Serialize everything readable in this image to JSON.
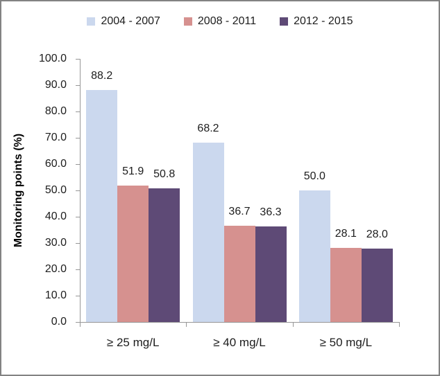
{
  "chart_data": {
    "type": "bar",
    "title": "",
    "ylabel": "Monitoring points (%)",
    "xlabel": "",
    "categories": [
      "≥ 25 mg/L",
      "≥ 40 mg/L",
      "≥ 50 mg/L"
    ],
    "series": [
      {
        "name": "2004 - 2007",
        "color": "#CBD8EE",
        "values": [
          88.2,
          68.2,
          50.0
        ]
      },
      {
        "name": "2008 - 2011",
        "color": "#D6918F",
        "values": [
          51.9,
          36.7,
          28.1
        ]
      },
      {
        "name": "2012 - 2015",
        "color": "#5E4A76",
        "values": [
          50.8,
          36.3,
          28.0
        ]
      }
    ],
    "ylim": [
      0,
      100
    ],
    "ytick_step": 10,
    "ytick_decimals": 1,
    "value_label_decimals": 1,
    "legend_position": "top",
    "grid": false,
    "axis_color": "#969696",
    "text_color": "#1c1c1c"
  }
}
